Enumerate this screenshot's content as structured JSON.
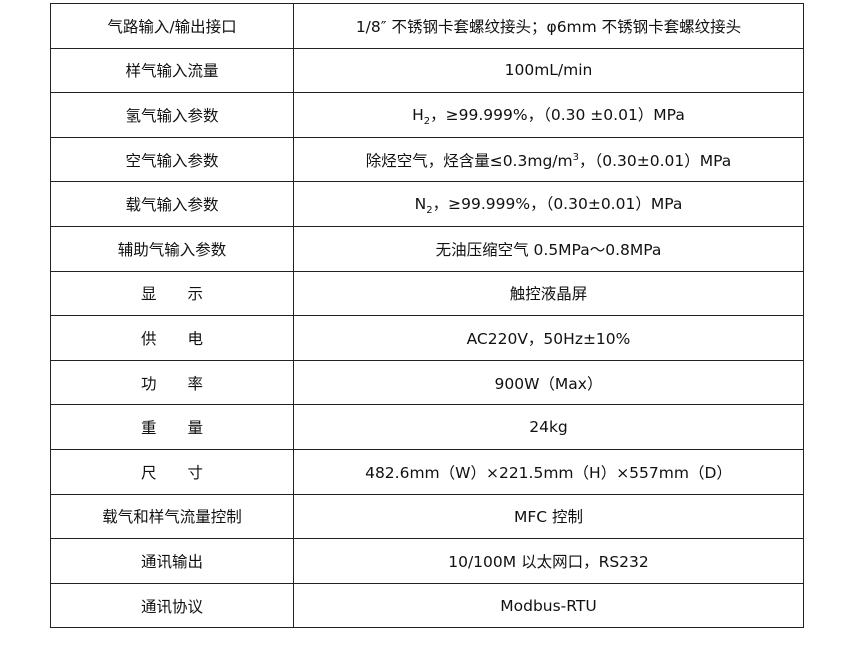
{
  "table": {
    "rows": [
      [
        "气路输入/输出接口",
        "1/8″ 不锈钢卡套螺纹接头；φ6mm 不锈钢卡套螺纹接头"
      ],
      [
        "样气输入流量",
        "100mL/min"
      ],
      [
        "氢气输入参数",
        [
          "H",
          {
            "sub": "2"
          },
          "，≥99.999%，（0.30  ±0.01）MPa"
        ]
      ],
      [
        "空气输入参数",
        [
          "除烃空气，烃含量≤0.3mg/m",
          {
            "sup": "3"
          },
          "，（0.30±0.01）MPa"
        ]
      ],
      [
        "载气输入参数",
        [
          "N",
          {
            "sub": "2"
          },
          "，≥99.999%，（0.30±0.01）MPa"
        ]
      ],
      [
        "辅助气输入参数",
        "无油压缩空气 0.5MPa～0.8MPa"
      ],
      [
        "显　　示",
        "触控液晶屏"
      ],
      [
        "供　　电",
        "AC220V，50Hz±10%"
      ],
      [
        "功　　率",
        "900W（Max）"
      ],
      [
        "重　　量",
        "24kg"
      ],
      [
        "尺　　寸",
        "482.6mm（W）×221.5mm（H）×557mm（D）"
      ],
      [
        "载气和样气流量控制",
        "MFC 控制"
      ],
      [
        "通讯输出",
        "10/100M 以太网口，RS232"
      ],
      [
        "通讯协议",
        "Modbus-RTU"
      ]
    ]
  }
}
